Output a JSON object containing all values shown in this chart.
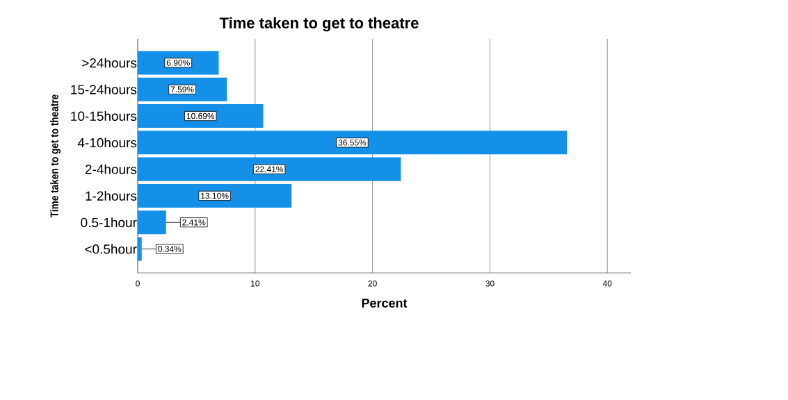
{
  "chart_data": {
    "type": "bar",
    "orientation": "horizontal",
    "title": "Time taken to get to theatre",
    "xlabel": "Percent",
    "ylabel": "Time taken to get to theatre",
    "categories": [
      ">24hours",
      "15-24hours",
      "10-15hours",
      "4-10hours",
      "2-4hours",
      "1-2hours",
      "0.5-1hour",
      "<0.5hour"
    ],
    "values": [
      6.9,
      7.59,
      10.69,
      36.55,
      22.41,
      13.1,
      2.41,
      0.34
    ],
    "value_labels": [
      "6.90%",
      "7.59%",
      "10.69%",
      "36.55%",
      "22.41%",
      "13.10%",
      "2.41%",
      "0.34%"
    ],
    "color": "#1490e8",
    "xlim": [
      0,
      42
    ],
    "xticks": [
      0,
      10,
      20,
      30,
      40
    ],
    "grid": "x"
  }
}
